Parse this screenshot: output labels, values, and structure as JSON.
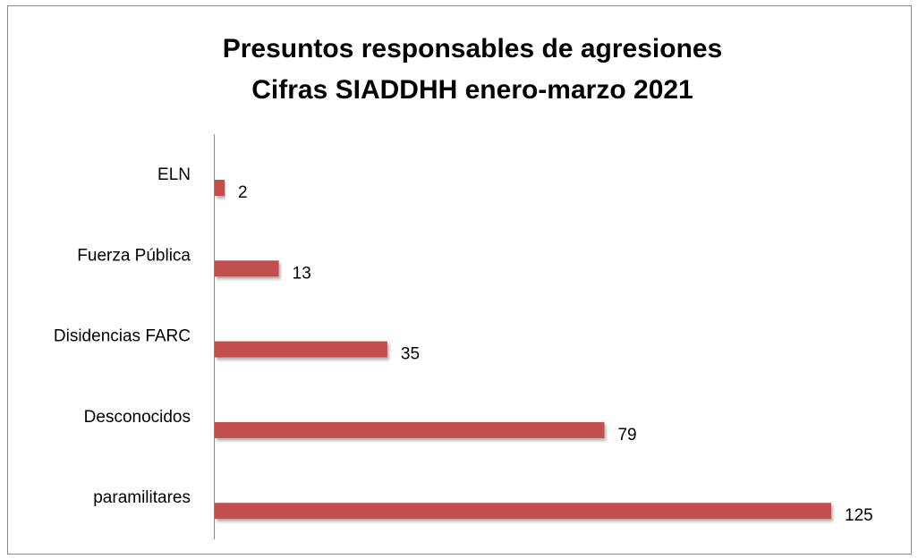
{
  "chart_data": {
    "type": "bar",
    "orientation": "horizontal",
    "title": [
      "Presuntos responsables de agresiones",
      "Cifras SIADDHH enero-marzo 2021"
    ],
    "categories": [
      "ELN",
      "Fuerza Pública",
      "Disidencias FARC",
      "Desconocidos",
      "paramilitares"
    ],
    "values": [
      2,
      13,
      35,
      79,
      125
    ],
    "color": "#c0504d"
  }
}
